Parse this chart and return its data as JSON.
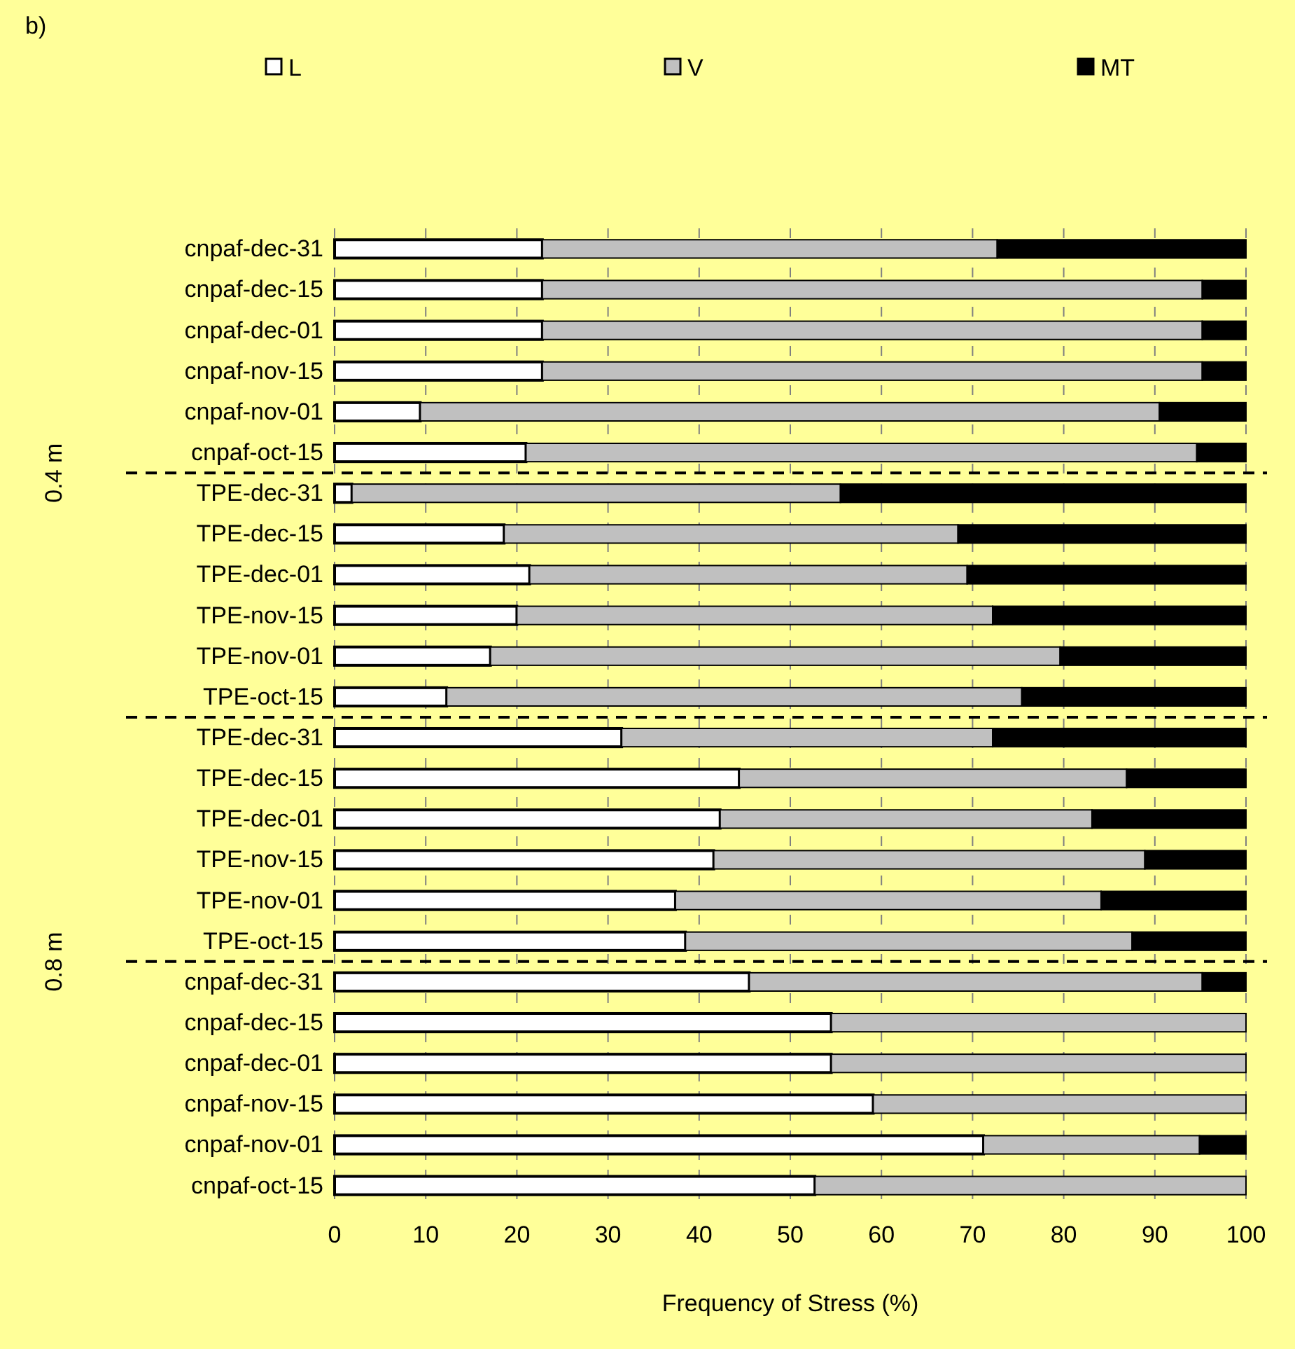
{
  "chart_data": {
    "type": "bar",
    "orientation": "horizontal",
    "stacked": true,
    "annotations": [
      "b)",
      "0.4 m",
      "0.8 m"
    ],
    "xlabel": "Frequency of Stress (%)",
    "categories": [
      "cnpaf-dec-31",
      "cnpaf-dec-15",
      "cnpaf-dec-01",
      "cnpaf-nov-15",
      "cnpaf-nov-01",
      "cnpaf-oct-15",
      "TPE-dec-31",
      "TPE-dec-15",
      "TPE-dec-01",
      "TPE-nov-15",
      "TPE-nov-01",
      "TPE-oct-15",
      "TPE-dec-31",
      "TPE-dec-15",
      "TPE-dec-01",
      "TPE-nov-15",
      "TPE-nov-01",
      "TPE-oct-15",
      "cnpaf-dec-31",
      "cnpaf-dec-15",
      "cnpaf-dec-01",
      "cnpaf-nov-15",
      "cnpaf-nov-01",
      "cnpaf-oct-15"
    ],
    "series": [
      {
        "name": "L",
        "color": "#ffffff",
        "values": [
          22.8,
          22.8,
          22.8,
          22.8,
          9.4,
          21.0,
          1.9,
          18.6,
          21.4,
          20.0,
          17.1,
          12.3,
          31.5,
          44.4,
          42.3,
          41.6,
          37.4,
          38.5,
          45.5,
          54.5,
          54.5,
          59.1,
          71.2,
          52.7
        ]
      },
      {
        "name": "V",
        "color": "#c0c0c0",
        "values": [
          49.9,
          72.4,
          72.4,
          72.4,
          81.1,
          73.6,
          53.6,
          49.8,
          48.0,
          52.2,
          62.5,
          63.1,
          40.7,
          42.5,
          40.8,
          47.3,
          46.7,
          49.0,
          49.7,
          45.5,
          45.5,
          40.9,
          23.7,
          47.3
        ]
      },
      {
        "name": "MT",
        "color": "#000000",
        "values": [
          27.3,
          4.8,
          4.8,
          4.8,
          9.5,
          5.4,
          44.5,
          31.6,
          30.6,
          27.8,
          20.4,
          24.6,
          27.8,
          13.1,
          16.9,
          11.1,
          15.9,
          12.5,
          4.8,
          0,
          0,
          0,
          5.1,
          0
        ]
      }
    ],
    "xlim": [
      0,
      100
    ],
    "xticks": [
      0,
      10,
      20,
      30,
      40,
      50,
      60,
      70,
      80,
      90,
      100
    ],
    "grid": "x",
    "legend": "top"
  }
}
